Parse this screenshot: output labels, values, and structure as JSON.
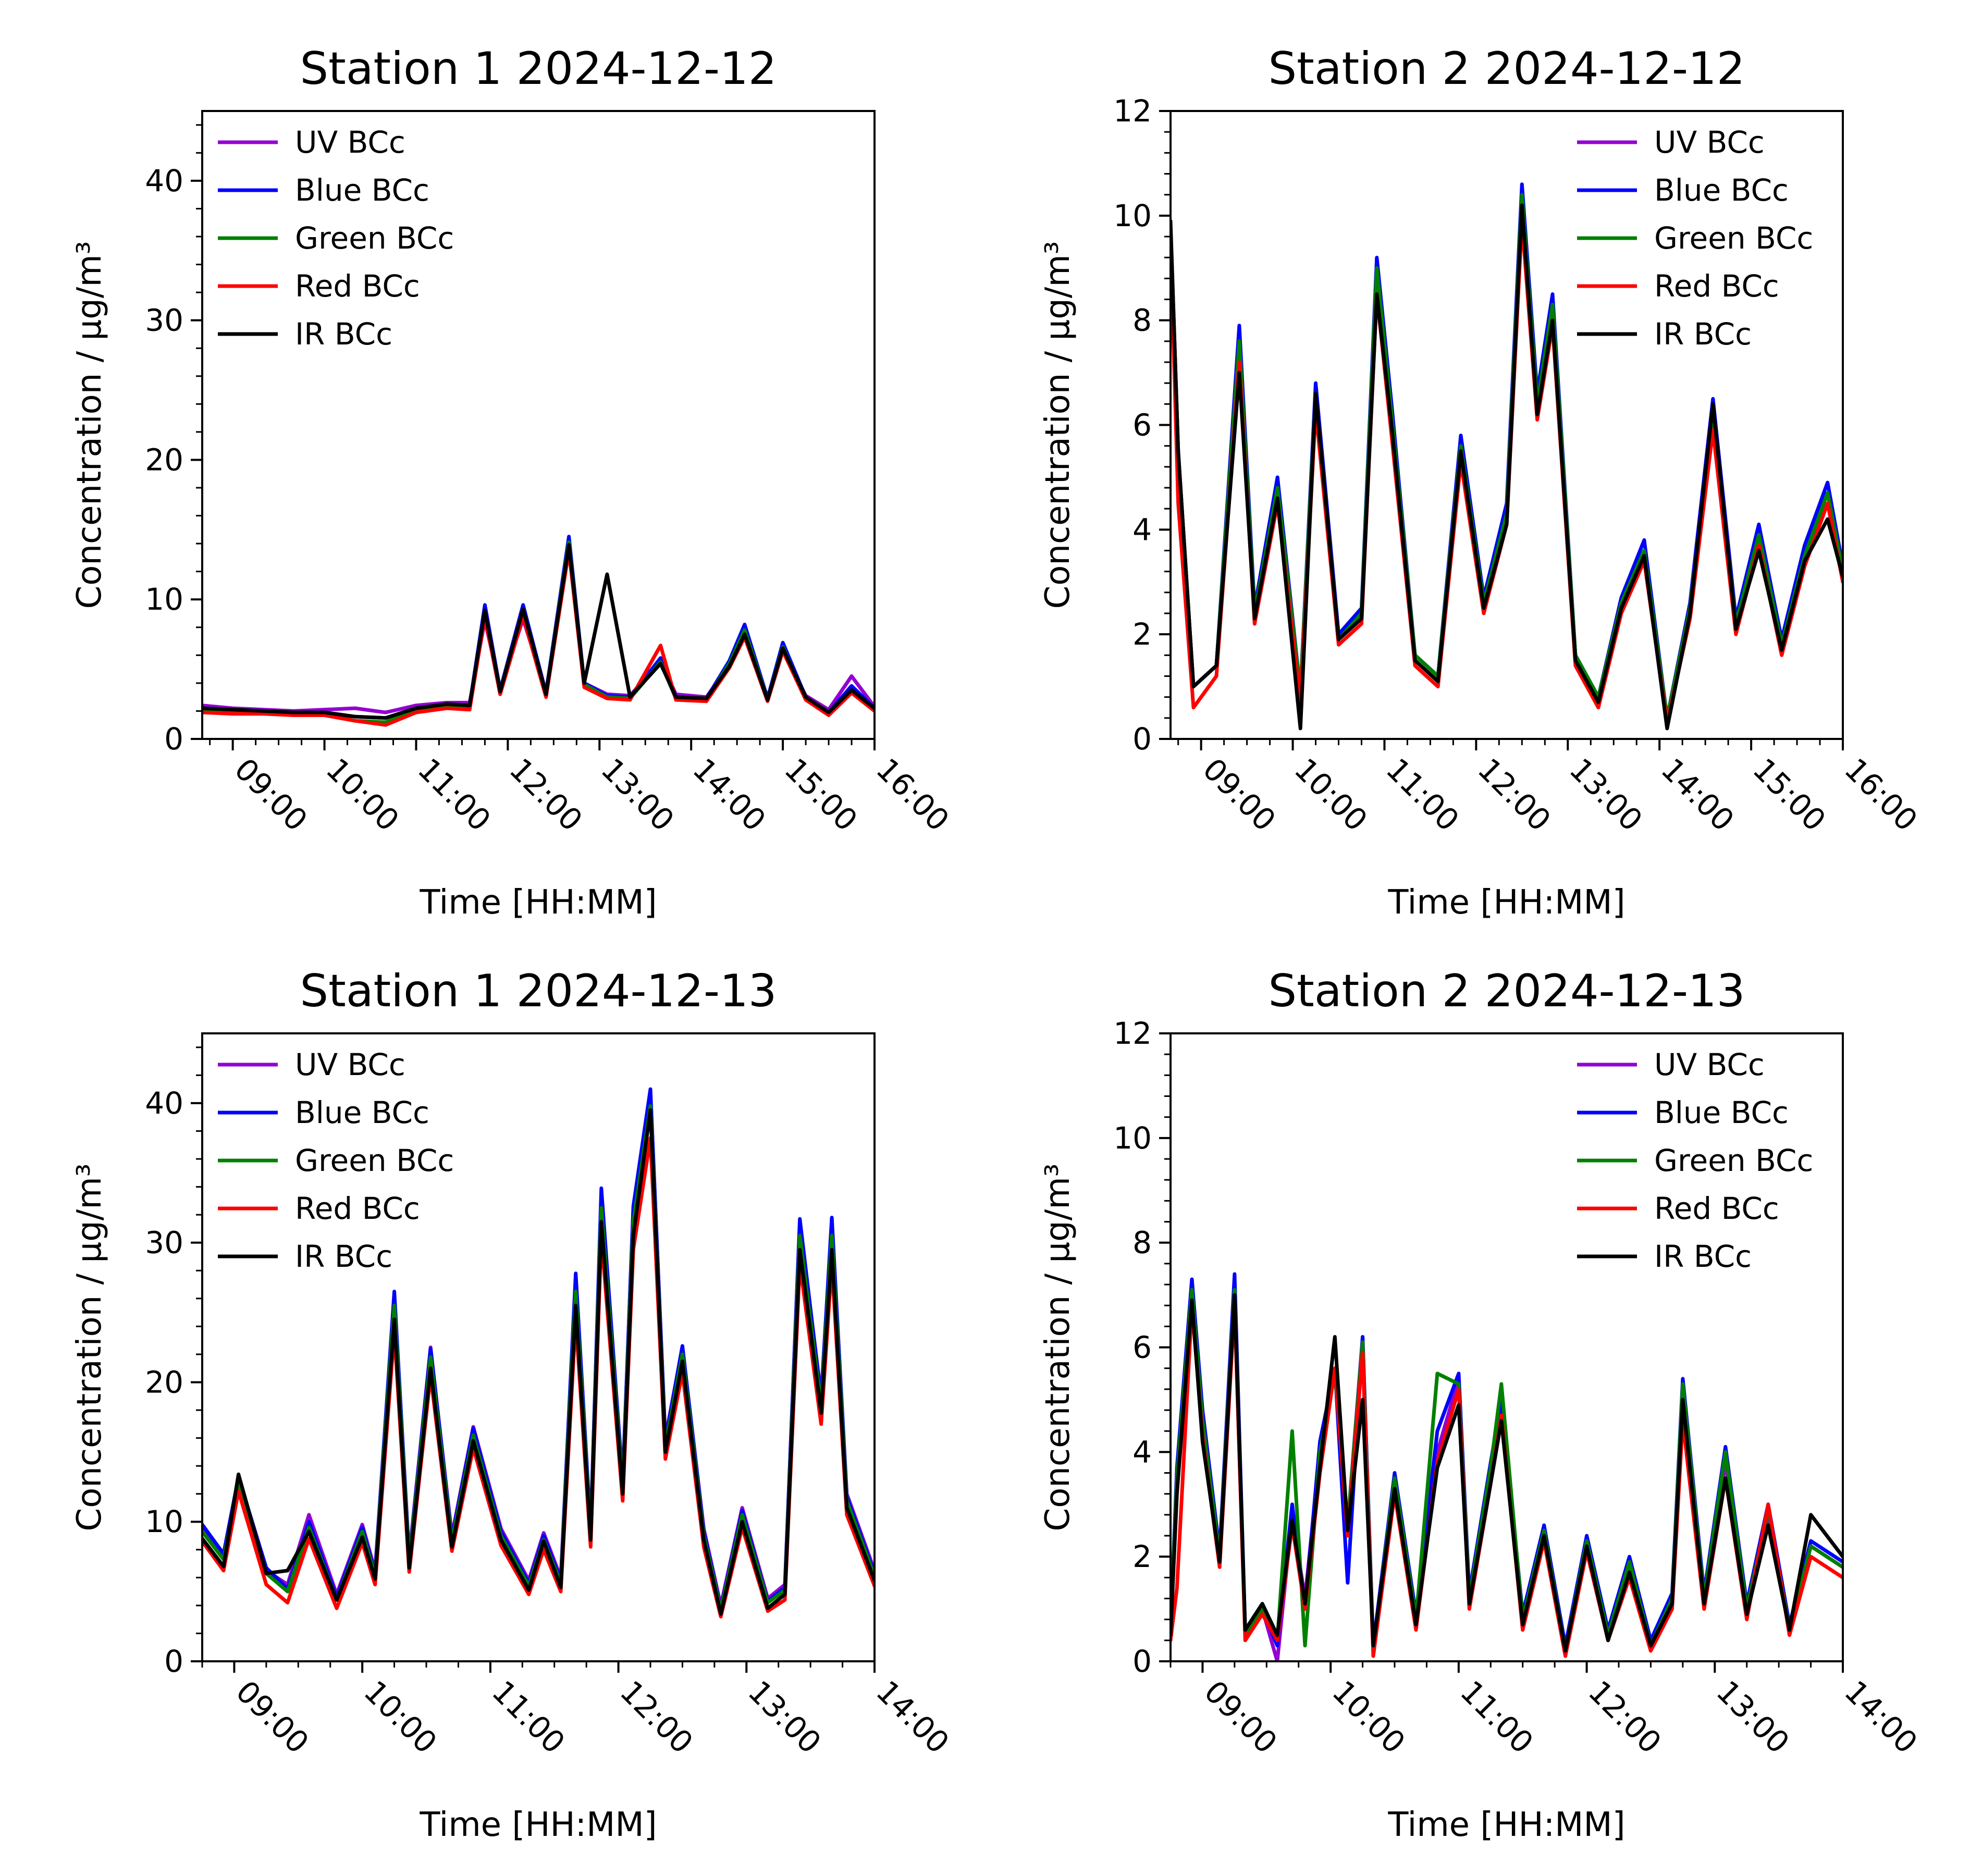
{
  "colors": {
    "UV BCc": "#9400d3",
    "Blue BCc": "#0000ff",
    "Green BCc": "#008000",
    "Red BCc": "#ff0000",
    "IR BCc": "#000000"
  },
  "chart_data": [
    {
      "type": "line",
      "title": "Station 1 2024-12-12",
      "xlabel": "Time [HH:MM]",
      "ylabel": "Concentration / μg/m³",
      "xlim": [
        "08:40",
        "16:00"
      ],
      "ylim": [
        0,
        45
      ],
      "xticks": [
        "09:00",
        "10:00",
        "11:00",
        "12:00",
        "13:00",
        "14:00",
        "15:00",
        "16:00"
      ],
      "yticks": [
        0,
        10,
        20,
        30,
        40
      ],
      "legend": "top-left",
      "x": [
        "08:40",
        "09:00",
        "09:20",
        "09:40",
        "10:00",
        "10:20",
        "10:40",
        "11:00",
        "11:20",
        "11:35",
        "11:45",
        "11:55",
        "12:10",
        "12:25",
        "12:40",
        "12:50",
        "13:05",
        "13:20",
        "13:40",
        "13:50",
        "14:10",
        "14:25",
        "14:35",
        "14:50",
        "15:00",
        "15:15",
        "15:30",
        "15:45",
        "16:00"
      ],
      "series": [
        {
          "name": "UV BCc",
          "values": [
            2.4,
            2.2,
            2.1,
            2.0,
            2.1,
            2.2,
            1.9,
            2.4,
            2.6,
            2.6,
            8.5,
            3.6,
            8.6,
            3.4,
            13.8,
            4.0,
            3.2,
            3.1,
            5.6,
            3.2,
            3.0,
            5.3,
            7.3,
            3.0,
            6.3,
            3.1,
            2.1,
            4.5,
            2.3
          ]
        },
        {
          "name": "Blue BCc",
          "values": [
            2.2,
            2.1,
            2.0,
            1.9,
            1.9,
            1.6,
            1.5,
            2.2,
            2.5,
            2.4,
            9.6,
            3.5,
            9.6,
            3.3,
            14.5,
            4.0,
            3.1,
            3.0,
            5.8,
            3.0,
            2.9,
            5.6,
            8.2,
            2.9,
            6.9,
            3.0,
            1.9,
            3.8,
            2.2
          ]
        },
        {
          "name": "Green BCc",
          "values": [
            2.1,
            2.0,
            1.9,
            1.8,
            1.8,
            1.3,
            1.2,
            2.1,
            2.4,
            2.3,
            9.2,
            3.4,
            9.3,
            3.2,
            14.1,
            3.9,
            3.0,
            2.9,
            5.5,
            2.9,
            2.8,
            5.4,
            7.8,
            2.8,
            6.6,
            2.9,
            1.8,
            3.5,
            2.1
          ]
        },
        {
          "name": "Red BCc",
          "values": [
            1.9,
            1.8,
            1.8,
            1.7,
            1.7,
            1.3,
            1.0,
            1.9,
            2.2,
            2.1,
            8.8,
            3.2,
            8.8,
            3.0,
            13.5,
            3.7,
            2.9,
            2.8,
            6.7,
            2.8,
            2.7,
            5.1,
            7.3,
            2.7,
            6.3,
            2.8,
            1.7,
            3.3,
            2.0
          ]
        },
        {
          "name": "IR BCc",
          "values": [
            2.2,
            2.1,
            2.0,
            1.9,
            1.9,
            1.6,
            1.5,
            2.2,
            2.5,
            2.4,
            9.2,
            3.4,
            9.3,
            3.2,
            13.9,
            4.0,
            11.8,
            3.0,
            5.4,
            3.0,
            2.9,
            5.2,
            7.5,
            2.8,
            6.5,
            3.0,
            1.9,
            3.5,
            2.2
          ]
        }
      ]
    },
    {
      "type": "line",
      "title": "Station 2 2024-12-12",
      "xlabel": "Time [HH:MM]",
      "ylabel": "Concentration / μg/m³",
      "xlim": [
        "08:40",
        "16:00"
      ],
      "ylim": [
        0,
        12
      ],
      "xticks": [
        "09:00",
        "10:00",
        "11:00",
        "12:00",
        "13:00",
        "14:00",
        "15:00",
        "16:00"
      ],
      "yticks": [
        0,
        2,
        4,
        6,
        8,
        10,
        12
      ],
      "legend": "top-right",
      "x": [
        "08:40",
        "08:45",
        "08:55",
        "09:10",
        "09:25",
        "09:35",
        "09:50",
        "10:05",
        "10:15",
        "10:30",
        "10:45",
        "10:55",
        "11:05",
        "11:20",
        "11:35",
        "11:50",
        "12:05",
        "12:20",
        "12:30",
        "12:40",
        "12:50",
        "13:05",
        "13:20",
        "13:35",
        "13:50",
        "14:05",
        "14:20",
        "14:35",
        "14:50",
        "15:05",
        "15:20",
        "15:35",
        "15:50",
        "16:00"
      ],
      "series": [
        {
          "name": "UV BCc",
          "values": [
            9.8,
            5.5,
            1.0,
            1.4,
            7.6,
            2.4,
            4.8,
            0.9,
            6.6,
            1.9,
            2.4,
            9.0,
            6.1,
            1.6,
            1.2,
            5.6,
            2.6,
            4.3,
            10.4,
            6.4,
            8.3,
            1.6,
            0.8,
            2.6,
            3.6,
            0.4,
            2.5,
            6.2,
            2.2,
            3.9,
            1.8,
            3.5,
            4.7,
            3.2
          ]
        },
        {
          "name": "Blue BCc",
          "values": [
            9.8,
            5.5,
            1.0,
            1.4,
            7.9,
            2.5,
            5.0,
            0.9,
            6.8,
            2.0,
            2.5,
            9.2,
            6.3,
            1.6,
            1.2,
            5.8,
            2.7,
            4.5,
            10.6,
            6.6,
            8.5,
            1.6,
            0.8,
            2.7,
            3.8,
            0.4,
            2.6,
            6.5,
            2.3,
            4.1,
            1.9,
            3.7,
            4.9,
            3.3
          ]
        },
        {
          "name": "Green BCc",
          "values": [
            9.8,
            5.5,
            1.0,
            1.4,
            7.6,
            2.4,
            4.8,
            0.9,
            6.6,
            1.9,
            2.4,
            9.0,
            6.1,
            1.6,
            1.2,
            5.6,
            2.6,
            4.3,
            10.4,
            6.4,
            8.3,
            1.6,
            0.8,
            2.6,
            3.6,
            0.4,
            2.5,
            6.2,
            2.2,
            3.9,
            1.8,
            3.5,
            4.7,
            3.2
          ]
        },
        {
          "name": "Red BCc",
          "values": [
            9.5,
            4.5,
            0.6,
            1.2,
            7.2,
            2.2,
            4.5,
            0.7,
            6.3,
            1.8,
            2.2,
            8.5,
            5.7,
            1.4,
            1.0,
            5.3,
            2.4,
            4.1,
            9.9,
            6.1,
            7.9,
            1.4,
            0.6,
            2.4,
            3.4,
            0.3,
            2.3,
            5.9,
            2.0,
            3.7,
            1.6,
            3.3,
            4.5,
            3.0
          ]
        },
        {
          "name": "IR BCc",
          "values": [
            9.9,
            5.5,
            1.0,
            1.4,
            7.0,
            2.3,
            4.6,
            0.2,
            6.6,
            1.9,
            2.3,
            8.5,
            5.9,
            1.5,
            1.1,
            5.5,
            2.5,
            4.1,
            10.2,
            6.2,
            8.0,
            1.5,
            0.7,
            2.5,
            3.5,
            0.2,
            2.4,
            6.4,
            2.1,
            3.6,
            1.7,
            3.4,
            4.2,
            3.1
          ]
        }
      ]
    },
    {
      "type": "line",
      "title": "Station 1 2024-12-13",
      "xlabel": "Time [HH:MM]",
      "ylabel": "Concentration / μg/m³",
      "xlim": [
        "08:45",
        "14:00"
      ],
      "ylim": [
        0,
        45
      ],
      "xticks": [
        "09:00",
        "10:00",
        "11:00",
        "12:00",
        "13:00",
        "14:00"
      ],
      "yticks": [
        0,
        10,
        20,
        30,
        40
      ],
      "legend": "top-left",
      "x": [
        "08:45",
        "08:55",
        "09:02",
        "09:15",
        "09:25",
        "09:35",
        "09:48",
        "10:00",
        "10:06",
        "10:15",
        "10:22",
        "10:32",
        "10:42",
        "10:52",
        "11:05",
        "11:18",
        "11:25",
        "11:33",
        "11:40",
        "11:47",
        "11:52",
        "12:02",
        "12:07",
        "12:15",
        "12:22",
        "12:30",
        "12:40",
        "12:48",
        "12:58",
        "13:10",
        "13:18",
        "13:25",
        "13:35",
        "13:40",
        "13:47",
        "14:00"
      ],
      "series": [
        {
          "name": "UV BCc",
          "values": [
            9.5,
            7.5,
            13.0,
            6.5,
            5.5,
            10.5,
            4.8,
            9.8,
            6.5,
            26.2,
            7.5,
            22.5,
            9.0,
            16.8,
            9.5,
            5.8,
            9.2,
            6.0,
            27.5,
            9.5,
            33.5,
            13.0,
            32.5,
            40.8,
            16.0,
            22.5,
            9.5,
            4.0,
            11.0,
            4.5,
            5.5,
            31.5,
            19.0,
            31.5,
            12.0,
            6.5
          ]
        },
        {
          "name": "Blue BCc",
          "values": [
            9.8,
            7.7,
            13.2,
            6.7,
            5.2,
            10.0,
            4.6,
            9.6,
            6.3,
            26.5,
            7.3,
            22.4,
            8.8,
            16.7,
            9.3,
            5.6,
            9.0,
            5.8,
            27.8,
            9.3,
            33.9,
            12.8,
            32.6,
            41.0,
            15.8,
            22.6,
            9.3,
            3.8,
            10.8,
            4.3,
            5.3,
            31.7,
            18.8,
            31.8,
            11.8,
            6.3
          ]
        },
        {
          "name": "Green BCc",
          "values": [
            9.3,
            7.3,
            12.8,
            6.3,
            5.0,
            9.6,
            4.4,
            9.3,
            6.1,
            25.5,
            7.1,
            21.8,
            8.6,
            16.2,
            9.0,
            5.4,
            8.7,
            5.6,
            26.5,
            9.0,
            32.5,
            12.4,
            31.5,
            39.8,
            15.4,
            22.0,
            9.0,
            3.7,
            10.5,
            4.2,
            5.1,
            30.5,
            18.3,
            30.5,
            11.5,
            6.1
          ]
        },
        {
          "name": "Red BCc",
          "values": [
            8.6,
            6.5,
            12.2,
            5.5,
            4.2,
            8.8,
            3.8,
            8.5,
            5.5,
            23.6,
            6.4,
            20.5,
            7.9,
            15.3,
            8.3,
            4.8,
            8.0,
            5.0,
            24.5,
            8.2,
            30.5,
            11.5,
            29.5,
            37.5,
            14.5,
            20.7,
            8.2,
            3.2,
            9.6,
            3.6,
            4.4,
            28.5,
            17.0,
            28.5,
            10.5,
            5.4
          ]
        },
        {
          "name": "IR BCc",
          "values": [
            8.8,
            6.8,
            13.4,
            6.3,
            6.5,
            9.3,
            4.4,
            8.9,
            5.9,
            24.5,
            6.7,
            21.0,
            8.2,
            15.8,
            8.7,
            5.1,
            8.6,
            5.3,
            25.5,
            8.7,
            31.5,
            12.0,
            30.5,
            39.5,
            15.0,
            21.5,
            8.7,
            3.4,
            10.0,
            3.8,
            4.8,
            29.5,
            17.8,
            29.5,
            11.0,
            5.8
          ]
        }
      ]
    },
    {
      "type": "line",
      "title": "Station 2 2024-12-13",
      "xlabel": "Time [HH:MM]",
      "ylabel": "Concentration / μg/m³",
      "xlim": [
        "08:45",
        "14:00"
      ],
      "ylim": [
        0,
        12
      ],
      "xticks": [
        "09:00",
        "10:00",
        "11:00",
        "12:00",
        "13:00",
        "14:00"
      ],
      "yticks": [
        0,
        2,
        4,
        6,
        8,
        10,
        12
      ],
      "legend": "top-right",
      "x": [
        "08:45",
        "08:48",
        "08:55",
        "09:00",
        "09:08",
        "09:15",
        "09:20",
        "09:28",
        "09:35",
        "09:42",
        "09:48",
        "09:55",
        "10:02",
        "10:08",
        "10:15",
        "10:20",
        "10:30",
        "10:40",
        "10:50",
        "11:00",
        "11:05",
        "11:15",
        "11:20",
        "11:30",
        "11:40",
        "11:50",
        "12:00",
        "12:10",
        "12:20",
        "12:30",
        "12:40",
        "12:45",
        "12:55",
        "13:05",
        "13:15",
        "13:25",
        "13:35",
        "13:45",
        "14:00"
      ],
      "series": [
        {
          "name": "UV BCc",
          "values": [
            0.6,
            3.5,
            7.3,
            4.5,
            2.0,
            7.2,
            0.5,
            1.0,
            0.0,
            2.8,
            1.2,
            4.0,
            5.5,
            2.6,
            6.2,
            0.2,
            3.4,
            0.8,
            4.0,
            5.4,
            1.2,
            3.6,
            4.9,
            0.8,
            2.5,
            0.2,
            2.3,
            0.5,
            1.8,
            0.3,
            1.2,
            5.2,
            1.2,
            3.8,
            1.0,
            2.8,
            0.6,
            2.2,
            1.8
          ]
        },
        {
          "name": "Blue BCc",
          "values": [
            0.6,
            3.7,
            7.3,
            4.8,
            2.1,
            7.4,
            0.6,
            1.0,
            0.3,
            3.0,
            1.0,
            4.2,
            5.6,
            1.5,
            6.2,
            0.3,
            3.6,
            0.9,
            4.4,
            5.5,
            1.3,
            3.8,
            5.0,
            0.9,
            2.6,
            0.3,
            2.4,
            0.6,
            2.0,
            0.4,
            1.3,
            5.4,
            1.3,
            4.1,
            1.1,
            3.0,
            0.7,
            2.3,
            1.9
          ]
        },
        {
          "name": "Green BCc",
          "values": [
            0.6,
            3.5,
            7.1,
            4.6,
            2.0,
            7.1,
            0.5,
            1.0,
            0.4,
            4.4,
            0.3,
            4.0,
            5.5,
            2.6,
            6.1,
            0.2,
            3.5,
            0.8,
            5.5,
            5.3,
            1.2,
            3.7,
            5.3,
            0.8,
            2.5,
            0.2,
            2.3,
            0.5,
            1.9,
            0.3,
            1.2,
            5.3,
            1.2,
            4.0,
            1.0,
            2.9,
            0.6,
            2.2,
            1.8
          ]
        },
        {
          "name": "Red BCc",
          "values": [
            0.4,
            1.4,
            6.8,
            4.3,
            1.8,
            6.8,
            0.4,
            0.9,
            0.4,
            2.6,
            1.0,
            3.6,
            5.6,
            2.4,
            5.9,
            0.1,
            3.2,
            0.6,
            3.8,
            5.2,
            1.0,
            3.4,
            4.7,
            0.6,
            2.3,
            0.1,
            2.1,
            0.4,
            1.6,
            0.2,
            1.0,
            4.6,
            1.0,
            3.5,
            0.8,
            3.0,
            0.5,
            2.0,
            1.6
          ]
        },
        {
          "name": "IR BCc",
          "values": [
            0.5,
            3.2,
            6.9,
            4.2,
            1.9,
            7.0,
            0.6,
            1.1,
            0.5,
            2.7,
            1.1,
            3.7,
            6.2,
            2.5,
            5.0,
            0.3,
            3.3,
            0.7,
            3.7,
            4.9,
            1.1,
            3.4,
            4.6,
            0.7,
            2.4,
            0.2,
            2.2,
            0.4,
            1.7,
            0.3,
            1.1,
            5.0,
            1.1,
            3.5,
            0.9,
            2.6,
            0.6,
            2.8,
            2.0
          ]
        }
      ]
    }
  ]
}
